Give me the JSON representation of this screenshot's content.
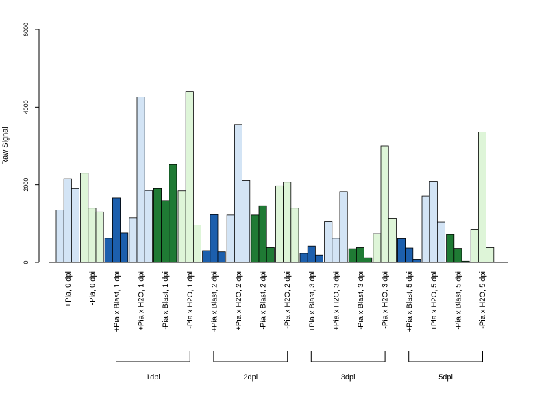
{
  "chart_data": {
    "type": "bar",
    "ylabel": "Raw Signal",
    "ylim": [
      0,
      6000
    ],
    "yticks": [
      0,
      2000,
      4000,
      6000
    ],
    "colors": {
      "pia_blast": "#1c5fad",
      "pia_h2o": "#d3e4f5",
      "mpia_blast": "#1f7a34",
      "mpia_h2o": "#def5d8",
      "stroke": "#000000"
    },
    "categories": [
      {
        "label": "+Pia, 0 dpi",
        "color": "pia_h2o",
        "values": [
          1350,
          2150,
          1900
        ]
      },
      {
        "label": "-Pia, 0 dpi",
        "color": "mpia_h2o",
        "values": [
          2300,
          1400,
          1300
        ]
      },
      {
        "label": "+Pia x Blast, 1 dpi",
        "color": "pia_blast",
        "values": [
          620,
          1660,
          760
        ]
      },
      {
        "label": "+Pia x H2O, 1 dpi",
        "color": "pia_h2o",
        "values": [
          1150,
          4260,
          1850
        ]
      },
      {
        "label": "-Pia x Blast, 1 dpi",
        "color": "mpia_blast",
        "values": [
          1900,
          1590,
          2520
        ]
      },
      {
        "label": "-Pia x H2O, 1 dpi",
        "color": "mpia_h2o",
        "values": [
          1840,
          4400,
          960
        ]
      },
      {
        "label": "+Pia x Blast, 2 dpi",
        "color": "pia_blast",
        "values": [
          300,
          1230,
          270
        ]
      },
      {
        "label": "+Pia x H2O, 2 dpi",
        "color": "pia_h2o",
        "values": [
          1220,
          3550,
          2110
        ]
      },
      {
        "label": "-Pia x Blast, 2 dpi",
        "color": "mpia_blast",
        "values": [
          1220,
          1460,
          380
        ]
      },
      {
        "label": "-Pia x H2O, 2 dpi",
        "color": "mpia_h2o",
        "values": [
          1970,
          2070,
          1400
        ]
      },
      {
        "label": "+Pia x Blast, 3 dpi",
        "color": "pia_blast",
        "values": [
          230,
          420,
          190
        ]
      },
      {
        "label": "+Pia x H2O, 3 dpi",
        "color": "pia_h2o",
        "values": [
          1050,
          620,
          1820
        ]
      },
      {
        "label": "-Pia x Blast, 3 dpi",
        "color": "mpia_blast",
        "values": [
          350,
          380,
          120
        ]
      },
      {
        "label": "-Pia x H2O, 3 dpi",
        "color": "mpia_h2o",
        "values": [
          740,
          3000,
          1140
        ]
      },
      {
        "label": "+Pia x Blast, 5 dpi",
        "color": "pia_blast",
        "values": [
          610,
          370,
          80
        ]
      },
      {
        "label": "+Pia x H2O, 5 dpi",
        "color": "pia_h2o",
        "values": [
          1710,
          2090,
          1040
        ]
      },
      {
        "label": "-Pia x Blast, 5 dpi",
        "color": "mpia_blast",
        "values": [
          720,
          360,
          30
        ]
      },
      {
        "label": "-Pia x H2O, 5 dpi",
        "color": "mpia_h2o",
        "values": [
          840,
          3360,
          380
        ]
      }
    ],
    "groups": [
      {
        "label": "1dpi",
        "from": 2,
        "to": 5
      },
      {
        "label": "2dpi",
        "from": 6,
        "to": 9
      },
      {
        "label": "3dpi",
        "from": 10,
        "to": 13
      },
      {
        "label": "5dpi",
        "from": 14,
        "to": 17
      }
    ],
    "grid": false,
    "legend": "none"
  }
}
